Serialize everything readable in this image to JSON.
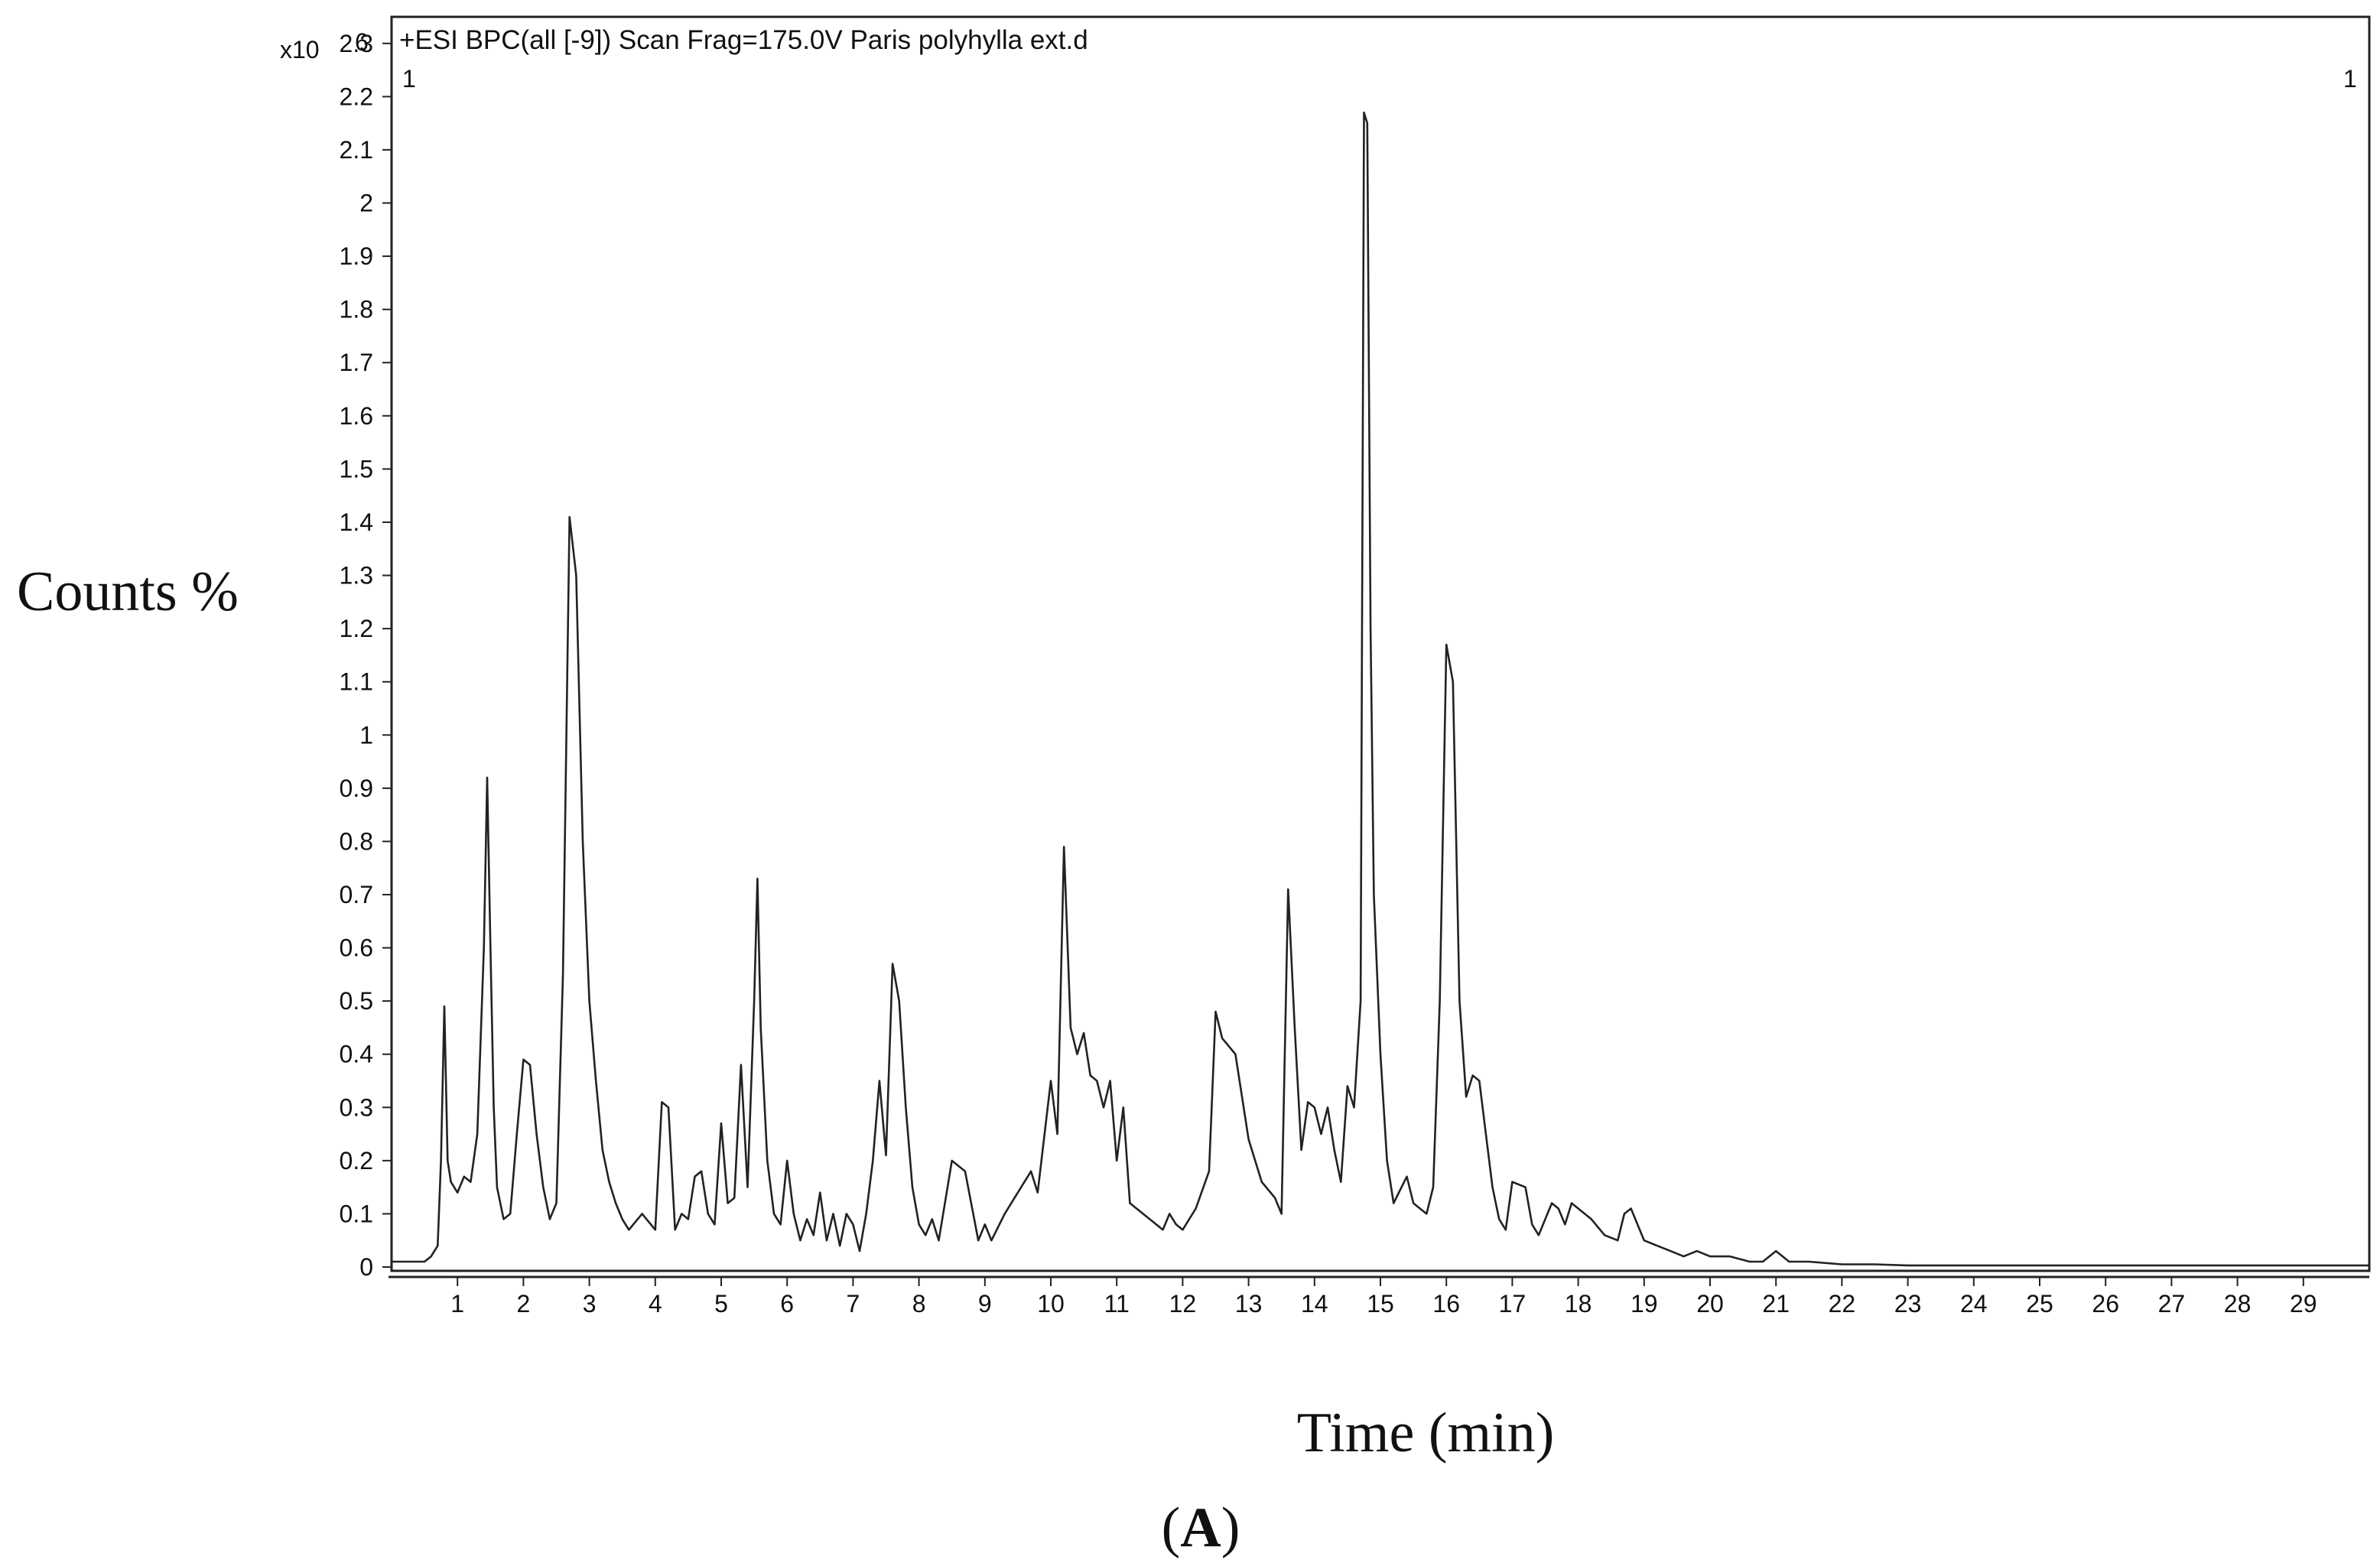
{
  "chart_data": {
    "type": "line",
    "title": "+ESI BPC(all [-9]) Scan Frag=175.0V Paris polyhylla ext.d",
    "scale_label": "x10",
    "scale_exponent": "6",
    "corner_marks": [
      "1",
      "1"
    ],
    "xlabel": "Time (min)",
    "ylabel": "Counts %",
    "panel_label": "A",
    "xlim": [
      0,
      30
    ],
    "ylim": [
      0,
      2.35
    ],
    "x_ticks": [
      1,
      2,
      3,
      4,
      5,
      6,
      7,
      8,
      9,
      10,
      11,
      12,
      13,
      14,
      15,
      16,
      17,
      18,
      19,
      20,
      21,
      22,
      23,
      24,
      25,
      26,
      27,
      28,
      29
    ],
    "y_ticks": [
      "0",
      "0.1",
      "0.2",
      "0.3",
      "0.4",
      "0.5",
      "0.6",
      "0.7",
      "0.8",
      "0.9",
      "1",
      "1.1",
      "1.2",
      "1.3",
      "1.4",
      "1.5",
      "1.6",
      "1.7",
      "1.8",
      "1.9",
      "2",
      "2.1",
      "2.2",
      "2.3"
    ],
    "line_color": "#222222",
    "series": [
      {
        "x": [
          0,
          0.5,
          0.6,
          0.7,
          0.75,
          0.8,
          0.85,
          0.9,
          1.0,
          1.1,
          1.2,
          1.3,
          1.4,
          1.45,
          1.5,
          1.55,
          1.6,
          1.7,
          1.8,
          1.9,
          2.0,
          2.1,
          2.2,
          2.3,
          2.4,
          2.5,
          2.6,
          2.7,
          2.8,
          2.9,
          3.0,
          3.1,
          3.2,
          3.3,
          3.4,
          3.5,
          3.6,
          3.8,
          4.0,
          4.1,
          4.2,
          4.3,
          4.4,
          4.5,
          4.6,
          4.7,
          4.8,
          4.9,
          5.0,
          5.1,
          5.2,
          5.3,
          5.4,
          5.5,
          5.55,
          5.6,
          5.7,
          5.8,
          5.9,
          6.0,
          6.1,
          6.2,
          6.3,
          6.4,
          6.5,
          6.6,
          6.7,
          6.8,
          6.9,
          7.0,
          7.1,
          7.2,
          7.3,
          7.4,
          7.5,
          7.6,
          7.7,
          7.8,
          7.9,
          8.0,
          8.1,
          8.2,
          8.3,
          8.5,
          8.7,
          8.9,
          9.0,
          9.1,
          9.3,
          9.5,
          9.7,
          9.8,
          10.0,
          10.1,
          10.2,
          10.3,
          10.4,
          10.5,
          10.6,
          10.7,
          10.8,
          10.9,
          11.0,
          11.1,
          11.2,
          11.3,
          11.5,
          11.7,
          11.8,
          11.9,
          12.0,
          12.2,
          12.4,
          12.5,
          12.6,
          12.8,
          13.0,
          13.2,
          13.4,
          13.5,
          13.6,
          13.7,
          13.8,
          13.9,
          14.0,
          14.1,
          14.2,
          14.3,
          14.4,
          14.5,
          14.6,
          14.7,
          14.75,
          14.8,
          14.85,
          14.9,
          15.0,
          15.1,
          15.2,
          15.4,
          15.5,
          15.6,
          15.7,
          15.8,
          15.9,
          16.0,
          16.1,
          16.15,
          16.2,
          16.3,
          16.4,
          16.5,
          16.6,
          16.7,
          16.8,
          16.9,
          17.0,
          17.2,
          17.3,
          17.4,
          17.6,
          17.7,
          17.8,
          17.9,
          18.0,
          18.2,
          18.4,
          18.6,
          18.7,
          18.8,
          19.0,
          19.2,
          19.4,
          19.6,
          19.8,
          20.0,
          20.3,
          20.6,
          20.8,
          21.0,
          21.2,
          21.5,
          22.0,
          22.5,
          23.0,
          25.0,
          27.0,
          30.0
        ],
        "values": [
          0.01,
          0.01,
          0.02,
          0.04,
          0.2,
          0.49,
          0.2,
          0.16,
          0.14,
          0.17,
          0.16,
          0.25,
          0.6,
          0.92,
          0.6,
          0.3,
          0.15,
          0.09,
          0.1,
          0.25,
          0.39,
          0.38,
          0.25,
          0.15,
          0.09,
          0.12,
          0.55,
          1.41,
          1.3,
          0.8,
          0.5,
          0.35,
          0.22,
          0.16,
          0.12,
          0.09,
          0.07,
          0.1,
          0.07,
          0.31,
          0.3,
          0.07,
          0.1,
          0.09,
          0.17,
          0.18,
          0.1,
          0.08,
          0.27,
          0.12,
          0.13,
          0.38,
          0.15,
          0.5,
          0.73,
          0.45,
          0.2,
          0.1,
          0.08,
          0.2,
          0.1,
          0.05,
          0.09,
          0.06,
          0.14,
          0.05,
          0.1,
          0.04,
          0.1,
          0.08,
          0.03,
          0.1,
          0.2,
          0.35,
          0.21,
          0.57,
          0.5,
          0.3,
          0.15,
          0.08,
          0.06,
          0.09,
          0.05,
          0.2,
          0.18,
          0.05,
          0.08,
          0.05,
          0.1,
          0.14,
          0.18,
          0.14,
          0.35,
          0.25,
          0.79,
          0.45,
          0.4,
          0.44,
          0.36,
          0.35,
          0.3,
          0.35,
          0.2,
          0.3,
          0.12,
          0.11,
          0.09,
          0.07,
          0.1,
          0.08,
          0.07,
          0.11,
          0.18,
          0.48,
          0.43,
          0.4,
          0.24,
          0.16,
          0.13,
          0.1,
          0.71,
          0.45,
          0.22,
          0.31,
          0.3,
          0.25,
          0.3,
          0.22,
          0.16,
          0.34,
          0.3,
          0.5,
          2.17,
          2.15,
          1.2,
          0.7,
          0.4,
          0.2,
          0.12,
          0.17,
          0.12,
          0.11,
          0.1,
          0.15,
          0.5,
          1.17,
          1.1,
          0.8,
          0.5,
          0.32,
          0.36,
          0.35,
          0.25,
          0.15,
          0.09,
          0.07,
          0.16,
          0.15,
          0.08,
          0.06,
          0.12,
          0.11,
          0.08,
          0.12,
          0.11,
          0.09,
          0.06,
          0.05,
          0.1,
          0.11,
          0.05,
          0.04,
          0.03,
          0.02,
          0.03,
          0.02,
          0.02,
          0.01,
          0.01,
          0.03,
          0.01,
          0.01,
          0.005,
          0.005,
          0.003,
          0.003,
          0.003,
          0.003
        ]
      }
    ]
  }
}
